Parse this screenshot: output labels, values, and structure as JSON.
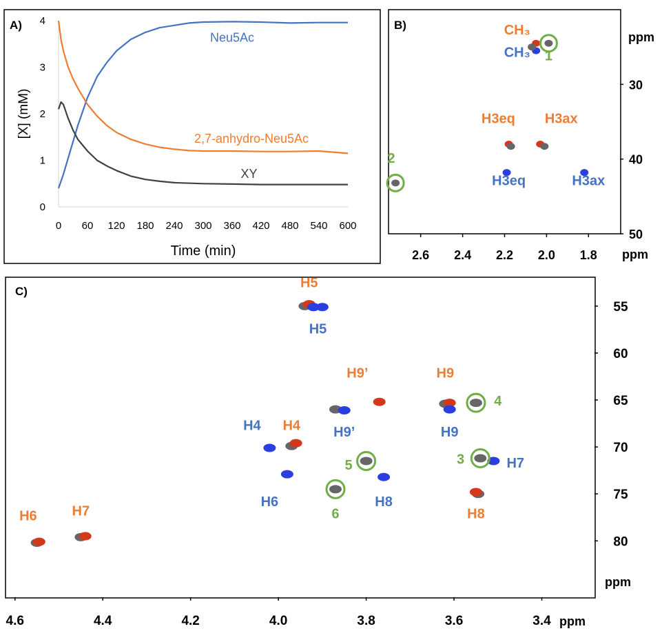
{
  "chart_data": [
    {
      "panel_tag": "A)",
      "type": "line",
      "xlabel": "Time (min)",
      "ylabel": "[X] (mM)",
      "xlim": [
        0,
        600
      ],
      "ylim": [
        0,
        4
      ],
      "x_ticks": [
        0,
        60,
        120,
        180,
        240,
        300,
        360,
        420,
        480,
        540,
        600
      ],
      "y_ticks": [
        0,
        1,
        2,
        3,
        4
      ],
      "grid": false,
      "series": [
        {
          "name": "Neu5Ac",
          "color": "#4472c4",
          "x": [
            0,
            10,
            20,
            30,
            40,
            50,
            60,
            80,
            100,
            120,
            150,
            180,
            210,
            240,
            270,
            300,
            360,
            420,
            480,
            540,
            600
          ],
          "y": [
            0.4,
            0.7,
            1.05,
            1.4,
            1.75,
            2.05,
            2.35,
            2.8,
            3.1,
            3.35,
            3.6,
            3.75,
            3.85,
            3.9,
            3.95,
            3.97,
            3.98,
            3.97,
            3.95,
            3.96,
            3.96
          ]
        },
        {
          "name": "2,7-anhydro-Neu5Ac",
          "color": "#ed7d31",
          "x": [
            0,
            5,
            10,
            20,
            30,
            40,
            60,
            80,
            100,
            120,
            150,
            180,
            210,
            240,
            270,
            300,
            360,
            420,
            480,
            540,
            600
          ],
          "y": [
            4.0,
            3.6,
            3.35,
            3.0,
            2.75,
            2.55,
            2.2,
            1.95,
            1.75,
            1.6,
            1.45,
            1.35,
            1.28,
            1.24,
            1.21,
            1.2,
            1.2,
            1.19,
            1.19,
            1.2,
            1.15
          ]
        },
        {
          "name": "XY",
          "color": "#404040",
          "x": [
            0,
            5,
            10,
            20,
            30,
            40,
            60,
            80,
            100,
            120,
            150,
            180,
            210,
            240,
            300,
            360,
            420,
            480,
            540,
            600
          ],
          "y": [
            2.1,
            2.25,
            2.2,
            1.9,
            1.65,
            1.45,
            1.2,
            1.0,
            0.88,
            0.78,
            0.66,
            0.59,
            0.55,
            0.52,
            0.5,
            0.49,
            0.48,
            0.48,
            0.48,
            0.48
          ]
        }
      ],
      "labels": [
        {
          "text": "Neu5Ac",
          "x": 360,
          "y": 3.55,
          "color": "#4472c4"
        },
        {
          "text": "2,7-anhydro-Neu5Ac",
          "x": 400,
          "y": 1.38,
          "color": "#ed7d31"
        },
        {
          "text": "XY",
          "x": 395,
          "y": 0.62,
          "color": "#404040"
        }
      ]
    },
    {
      "panel_tag": "B)",
      "type": "heatmap",
      "subtype": "2D HSQC NMR overlay",
      "x_unit": "ppm",
      "y_unit": "ppm",
      "xlim": [
        2.75,
        1.65
      ],
      "ylim": [
        20,
        50
      ],
      "x_ticks": [
        2.6,
        2.4,
        2.2,
        2.0,
        1.8
      ],
      "y_ticks": [
        30,
        40,
        50
      ],
      "peaks": [
        {
          "x": 2.05,
          "y": 24.5,
          "color": "#d4381a"
        },
        {
          "x": 2.05,
          "y": 25.5,
          "color": "#2b3fe0"
        },
        {
          "x": 2.07,
          "y": 25.0,
          "color": "#666666"
        },
        {
          "x": 2.18,
          "y": 38.0,
          "color": "#d4381a"
        },
        {
          "x": 2.17,
          "y": 38.3,
          "color": "#666666"
        },
        {
          "x": 2.03,
          "y": 38.0,
          "color": "#d4381a"
        },
        {
          "x": 2.01,
          "y": 38.3,
          "color": "#666666"
        },
        {
          "x": 2.19,
          "y": 41.8,
          "color": "#2b3fe0"
        },
        {
          "x": 1.82,
          "y": 41.8,
          "color": "#2b3fe0"
        },
        {
          "x": 2.72,
          "y": 43.2,
          "color": "#666666"
        },
        {
          "x": 1.99,
          "y": 24.5,
          "color": "#666666"
        }
      ],
      "labels": [
        {
          "text": "CH₃",
          "color": "#ed7d31",
          "x": 2.14,
          "y": 23.3
        },
        {
          "text": "CH₃",
          "color": "#4472c4",
          "x": 2.14,
          "y": 26.3
        },
        {
          "text": "1",
          "color": "#70ad47",
          "x": 1.99,
          "y": 26.8
        },
        {
          "text": "H3eq",
          "color": "#ed7d31",
          "x": 2.23,
          "y": 35.2
        },
        {
          "text": "H3ax",
          "color": "#ed7d31",
          "x": 1.93,
          "y": 35.2
        },
        {
          "text": "H3eq",
          "color": "#4472c4",
          "x": 2.18,
          "y": 43.5
        },
        {
          "text": "H3ax",
          "color": "#4472c4",
          "x": 1.8,
          "y": 43.5
        },
        {
          "text": "2",
          "color": "#70ad47",
          "x": 2.74,
          "y": 40.5
        }
      ],
      "circles": [
        {
          "label": "1",
          "x": 1.99,
          "y": 24.5
        },
        {
          "label": "2",
          "x": 2.72,
          "y": 43.2
        }
      ]
    },
    {
      "panel_tag": "C)",
      "type": "heatmap",
      "subtype": "2D HSQC NMR overlay",
      "x_unit": "ppm",
      "y_unit": "ppm",
      "xlim": [
        4.62,
        3.28
      ],
      "ylim": [
        52,
        86
      ],
      "x_ticks": [
        4.6,
        4.4,
        4.2,
        4.0,
        3.8,
        3.6,
        3.4
      ],
      "y_ticks": [
        55,
        60,
        65,
        70,
        75,
        80
      ],
      "peaks": [
        {
          "x": 3.94,
          "y": 55.0,
          "color": "#666666"
        },
        {
          "x": 3.93,
          "y": 54.8,
          "color": "#d4381a"
        },
        {
          "x": 3.92,
          "y": 55.1,
          "color": "#2b3fe0"
        },
        {
          "x": 3.9,
          "y": 55.1,
          "color": "#2b3fe0"
        },
        {
          "x": 3.77,
          "y": 65.2,
          "color": "#d4381a"
        },
        {
          "x": 3.87,
          "y": 66.0,
          "color": "#666666"
        },
        {
          "x": 3.85,
          "y": 66.1,
          "color": "#2b3fe0"
        },
        {
          "x": 3.62,
          "y": 65.4,
          "color": "#666666"
        },
        {
          "x": 3.61,
          "y": 65.3,
          "color": "#d4381a"
        },
        {
          "x": 3.61,
          "y": 66.0,
          "color": "#2b3fe0"
        },
        {
          "x": 3.55,
          "y": 65.3,
          "color": "#666666"
        },
        {
          "x": 4.02,
          "y": 70.1,
          "color": "#2b3fe0"
        },
        {
          "x": 3.97,
          "y": 69.9,
          "color": "#666666"
        },
        {
          "x": 3.96,
          "y": 69.6,
          "color": "#d4381a"
        },
        {
          "x": 3.8,
          "y": 71.5,
          "color": "#666666"
        },
        {
          "x": 3.76,
          "y": 73.2,
          "color": "#2b3fe0"
        },
        {
          "x": 3.54,
          "y": 71.2,
          "color": "#666666"
        },
        {
          "x": 3.51,
          "y": 71.5,
          "color": "#2b3fe0"
        },
        {
          "x": 3.98,
          "y": 72.9,
          "color": "#2b3fe0"
        },
        {
          "x": 3.87,
          "y": 74.5,
          "color": "#666666"
        },
        {
          "x": 3.545,
          "y": 75.0,
          "color": "#666666"
        },
        {
          "x": 3.55,
          "y": 74.8,
          "color": "#d4381a"
        },
        {
          "x": 4.55,
          "y": 80.2,
          "color": "#666666"
        },
        {
          "x": 4.545,
          "y": 80.1,
          "color": "#d4381a"
        },
        {
          "x": 4.45,
          "y": 79.6,
          "color": "#666666"
        },
        {
          "x": 4.44,
          "y": 79.5,
          "color": "#d4381a"
        }
      ],
      "labels": [
        {
          "text": "H5",
          "color": "#ed7d31",
          "x": 3.93,
          "y": 53.0
        },
        {
          "text": "H5",
          "color": "#4472c4",
          "x": 3.91,
          "y": 57.9
        },
        {
          "text": "H9’",
          "color": "#ed7d31",
          "x": 3.82,
          "y": 62.6
        },
        {
          "text": "H9’",
          "color": "#4472c4",
          "x": 3.85,
          "y": 68.9
        },
        {
          "text": "H9",
          "color": "#ed7d31",
          "x": 3.62,
          "y": 62.6
        },
        {
          "text": "H9",
          "color": "#4472c4",
          "x": 3.61,
          "y": 68.9
        },
        {
          "text": "4",
          "color": "#70ad47",
          "x": 3.5,
          "y": 65.6
        },
        {
          "text": "H4",
          "color": "#4472c4",
          "x": 4.06,
          "y": 68.2
        },
        {
          "text": "H4",
          "color": "#ed7d31",
          "x": 3.97,
          "y": 68.2
        },
        {
          "text": "5",
          "color": "#70ad47",
          "x": 3.84,
          "y": 72.4
        },
        {
          "text": "3",
          "color": "#70ad47",
          "x": 3.585,
          "y": 71.8
        },
        {
          "text": "H7",
          "color": "#4472c4",
          "x": 3.46,
          "y": 72.2
        },
        {
          "text": "H6",
          "color": "#4472c4",
          "x": 4.02,
          "y": 76.3
        },
        {
          "text": "6",
          "color": "#70ad47",
          "x": 3.87,
          "y": 77.6
        },
        {
          "text": "H8",
          "color": "#4472c4",
          "x": 3.76,
          "y": 76.3
        },
        {
          "text": "H8",
          "color": "#ed7d31",
          "x": 3.55,
          "y": 77.6
        },
        {
          "text": "H6",
          "color": "#ed7d31",
          "x": 4.57,
          "y": 77.8
        },
        {
          "text": "H7",
          "color": "#ed7d31",
          "x": 4.45,
          "y": 77.3
        }
      ],
      "circles": [
        {
          "label": "4",
          "x": 3.55,
          "y": 65.3
        },
        {
          "label": "5",
          "x": 3.8,
          "y": 71.5
        },
        {
          "label": "3",
          "x": 3.54,
          "y": 71.2
        },
        {
          "label": "6",
          "x": 3.87,
          "y": 74.5
        }
      ]
    }
  ],
  "colors": {
    "orange": "#ed7d31",
    "blue": "#4472c4",
    "green": "#70ad47",
    "peak_red": "#d4381a",
    "peak_blue": "#2b3fe0",
    "peak_gray": "#666666"
  }
}
